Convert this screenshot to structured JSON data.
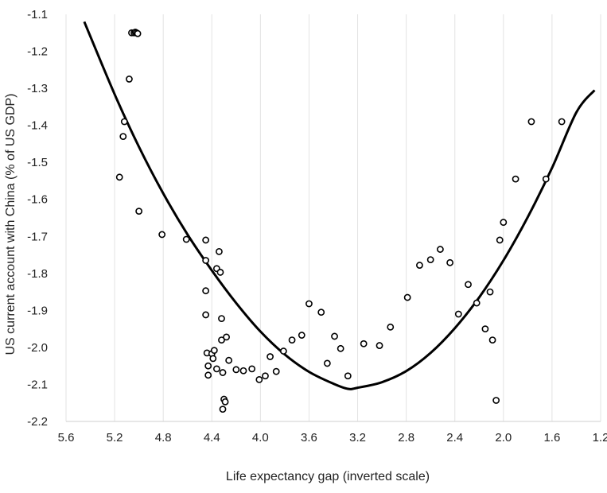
{
  "chart_data": {
    "type": "scatter",
    "title": "",
    "xlabel": "Life expectancy gap (inverted scale)",
    "ylabel": "US current account with China (% of US GDP)",
    "x_inverted": true,
    "xlim": [
      5.6,
      1.2
    ],
    "ylim": [
      -2.2,
      -1.1
    ],
    "xticks": [
      "5.6",
      "5.2",
      "4.8",
      "4.4",
      "4.0",
      "3.6",
      "3.2",
      "2.8",
      "2.4",
      "2.0",
      "1.6",
      "1.2"
    ],
    "yticks": [
      "-1.1",
      "-1.2",
      "-1.3",
      "-1.4",
      "-1.5",
      "-1.6",
      "-1.7",
      "-1.8",
      "-1.9",
      "-2.0",
      "-2.1",
      "-2.2"
    ],
    "grid": "vertical",
    "series": [
      {
        "kind": "points",
        "marker": "hollow-circle",
        "x": [
          5.06,
          5.04,
          5.03,
          5.02,
          5.01,
          5.08,
          5.12,
          5.13,
          5.16,
          5.0,
          4.81,
          4.61,
          4.45,
          4.45,
          4.45,
          4.45,
          4.44,
          4.43,
          4.43,
          4.4,
          4.39,
          4.38,
          4.36,
          4.36,
          4.34,
          4.33,
          4.32,
          4.32,
          4.31,
          4.31,
          4.3,
          4.29,
          4.28,
          4.26,
          4.2,
          4.14,
          4.07,
          4.01,
          3.96,
          3.92,
          3.87,
          3.81,
          3.74,
          3.66,
          3.6,
          3.5,
          3.45,
          3.39,
          3.34,
          3.28,
          3.15,
          3.02,
          2.93,
          2.79,
          2.69,
          2.6,
          2.52,
          2.44,
          2.37,
          2.29,
          2.22,
          2.15,
          2.11,
          2.09,
          2.06,
          2.03,
          2.0,
          1.9,
          1.77,
          1.65,
          1.52
        ],
        "y": [
          -1.15,
          -1.15,
          -1.148,
          -1.15,
          -1.152,
          -1.275,
          -1.39,
          -1.43,
          -1.54,
          -1.632,
          -1.695,
          -1.708,
          -1.71,
          -1.765,
          -1.847,
          -1.912,
          -2.015,
          -2.075,
          -2.05,
          -2.017,
          -2.03,
          -2.008,
          -1.787,
          -2.058,
          -1.741,
          -1.797,
          -1.922,
          -1.98,
          -2.068,
          -2.167,
          -2.14,
          -2.147,
          -1.972,
          -2.035,
          -2.06,
          -2.063,
          -2.058,
          -2.087,
          -2.077,
          -2.025,
          -2.065,
          -2.01,
          -1.98,
          -1.967,
          -1.882,
          -1.905,
          -2.043,
          -1.97,
          -2.003,
          -2.077,
          -1.99,
          -1.995,
          -1.945,
          -1.865,
          -1.778,
          -1.763,
          -1.735,
          -1.771,
          -1.91,
          -1.83,
          -1.88,
          -1.95,
          -1.85,
          -1.98,
          -2.143,
          -1.71,
          -1.662,
          -1.545,
          -1.39,
          -1.545,
          -1.39
        ]
      },
      {
        "kind": "fitted-curve",
        "color": "#000000",
        "x": [
          5.45,
          5.2,
          5.0,
          4.8,
          4.6,
          4.4,
          4.2,
          4.0,
          3.8,
          3.6,
          3.4,
          3.28,
          3.2,
          3.0,
          2.8,
          2.6,
          2.4,
          2.2,
          2.0,
          1.8,
          1.6,
          1.4,
          1.25
        ],
        "y": [
          -1.12,
          -1.316,
          -1.458,
          -1.584,
          -1.695,
          -1.792,
          -1.88,
          -1.957,
          -2.019,
          -2.066,
          -2.098,
          -2.112,
          -2.109,
          -2.094,
          -2.064,
          -2.015,
          -1.948,
          -1.865,
          -1.765,
          -1.648,
          -1.515,
          -1.365,
          -1.305
        ]
      }
    ]
  }
}
